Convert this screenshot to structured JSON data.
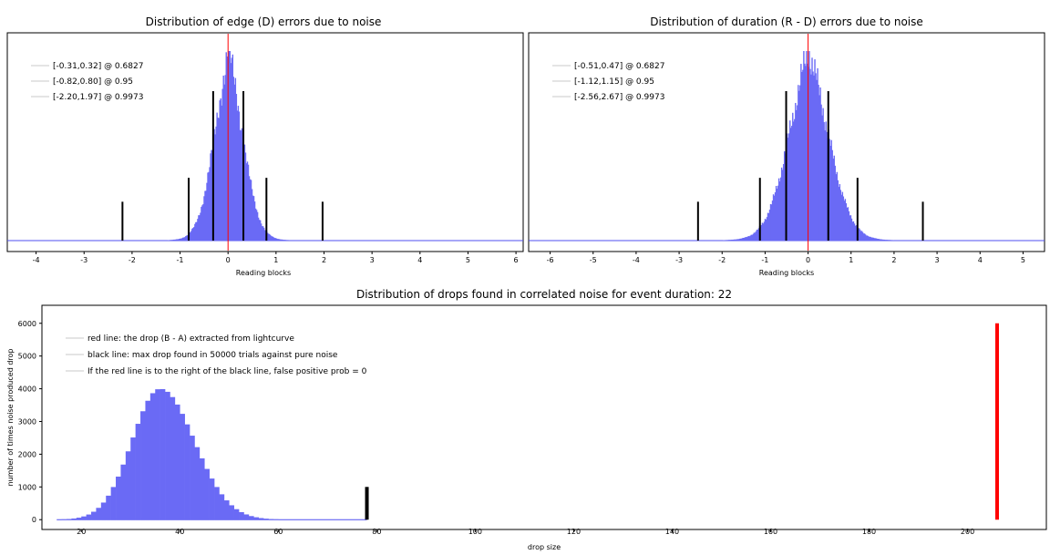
{
  "colors": {
    "fill": "#6a6af5",
    "edge": "#4f4ff0",
    "red": "#ff0000",
    "black": "#000000",
    "frame": "#000000"
  },
  "chart_data": [
    {
      "type": "bar",
      "title": "Distribution of edge (D) errors due to noise",
      "xlabel": "Reading blocks",
      "ylabel": "",
      "xlim": [
        -4.6,
        6.15
      ],
      "x_ticks": [
        -4,
        -3,
        -2,
        -1,
        0,
        1,
        2,
        3,
        4,
        5,
        6
      ],
      "histogram": {
        "center": 0.0,
        "sd": 0.32
      },
      "marker_lines": [
        {
          "x": -2.2,
          "h": 0.26
        },
        {
          "x": -0.82,
          "h": 0.42
        },
        {
          "x": -0.31,
          "h": 1.0
        },
        {
          "x": 0.32,
          "h": 1.0
        },
        {
          "x": 0.8,
          "h": 0.42
        },
        {
          "x": 1.97,
          "h": 0.26
        }
      ],
      "red_line_x": 0.0,
      "legend": [
        "[-0.31,0.32] @ 0.6827",
        "[-0.82,0.80] @ 0.95",
        "[-2.20,1.97] @ 0.9973"
      ]
    },
    {
      "type": "bar",
      "title": "Distribution of duration (R - D) errors due to noise",
      "xlabel": "Reading blocks",
      "ylabel": "",
      "xlim": [
        -6.5,
        5.5
      ],
      "x_ticks": [
        -6,
        -5,
        -4,
        -3,
        -2,
        -1,
        0,
        1,
        2,
        3,
        4,
        5
      ],
      "histogram": {
        "center": 0.0,
        "sd": 0.5
      },
      "marker_lines": [
        {
          "x": -2.56,
          "h": 0.26
        },
        {
          "x": -1.12,
          "h": 0.42
        },
        {
          "x": -0.51,
          "h": 1.0
        },
        {
          "x": 0.47,
          "h": 1.0
        },
        {
          "x": 1.15,
          "h": 0.42
        },
        {
          "x": 2.67,
          "h": 0.26
        }
      ],
      "red_line_x": 0.0,
      "legend": [
        "[-0.51,0.47] @ 0.6827",
        "[-1.12,1.15] @ 0.95",
        "[-2.56,2.67] @ 0.9973"
      ]
    },
    {
      "type": "bar",
      "title": "Distribution of drops found in correlated noise for event duration: 22",
      "xlabel": "drop size",
      "ylabel": "number of times noise produced drop",
      "xlim": [
        12,
        216
      ],
      "ylim": [
        -300,
        6550
      ],
      "x_ticks": [
        20,
        40,
        60,
        80,
        100,
        120,
        140,
        160,
        180,
        200
      ],
      "y_ticks": [
        0,
        1000,
        2000,
        3000,
        4000,
        5000,
        6000
      ],
      "histogram": {
        "peak_x": 36,
        "peak_y": 4000,
        "sd": 6
      },
      "black_line": {
        "x": 78,
        "y_max": 1000
      },
      "red_line": {
        "x": 206,
        "y_max": 6000
      },
      "legend": [
        "red line: the drop (B - A) extracted from lightcurve",
        "black line: max drop found in 50000 trials against pure noise",
        "If the red line is to the right of the black line, false positive prob = 0"
      ]
    }
  ]
}
